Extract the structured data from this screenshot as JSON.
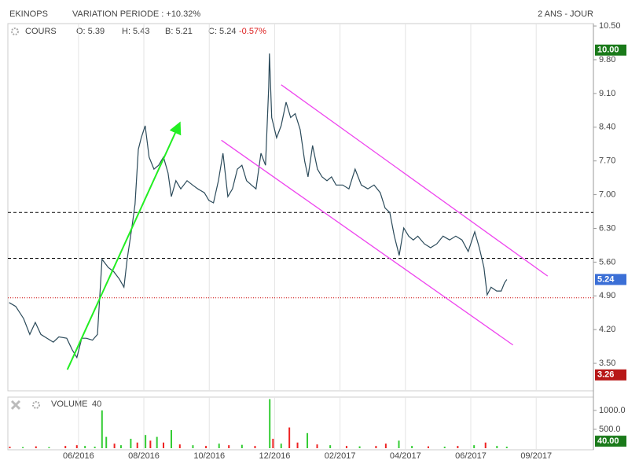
{
  "header": {
    "name": "EKINOPS",
    "variation": "VARIATION PERIODE : +10.32%",
    "period": "2 ANS - JOUR"
  },
  "chart_data": [
    {
      "type": "line",
      "legend": {
        "open": "O: 5.39",
        "high": "H: 5.43",
        "low": "B: 5.21",
        "close": "C: 5.24",
        "change": "-0.57%"
      },
      "xlim": [
        3.84,
        21.75
      ],
      "ylim": [
        2.93,
        10.55
      ],
      "xticks": [
        {
          "value": 6,
          "label": "06/2016"
        },
        {
          "value": 8,
          "label": "08/2016"
        },
        {
          "value": 10,
          "label": "10/2016"
        },
        {
          "value": 12,
          "label": "12/2016"
        },
        {
          "value": 14,
          "label": "02/2017"
        },
        {
          "value": 16,
          "label": "04/2017"
        },
        {
          "value": 18,
          "label": "06/2017"
        },
        {
          "value": 20,
          "label": "09/2017"
        }
      ],
      "yticks": [
        {
          "value": 3.5,
          "label": "3.50"
        },
        {
          "value": 4.2,
          "label": "4.20"
        },
        {
          "value": 4.9,
          "label": "4.90"
        },
        {
          "value": 5.6,
          "label": "5.60"
        },
        {
          "value": 6.3,
          "label": "6.30"
        },
        {
          "value": 7,
          "label": "7.00"
        },
        {
          "value": 7.7,
          "label": "7.70"
        },
        {
          "value": 8.4,
          "label": "8.40"
        },
        {
          "value": 9.1,
          "label": "9.10"
        },
        {
          "value": 9.8,
          "label": "9.80"
        },
        {
          "value": 10.5,
          "label": "10.50"
        }
      ],
      "grid": true,
      "series": [
        {
          "name": "COURS",
          "color": "#2b4a5a",
          "x": [
            3.88,
            4.08,
            4.32,
            4.51,
            4.68,
            4.85,
            5.04,
            5.23,
            5.4,
            5.64,
            5.81,
            5.95,
            6.1,
            6.24,
            6.43,
            6.58,
            6.72,
            6.91,
            7.08,
            7.25,
            7.39,
            7.49,
            7.63,
            7.73,
            7.83,
            7.92,
            8.04,
            8.16,
            8.31,
            8.45,
            8.6,
            8.74,
            8.84,
            8.98,
            9.13,
            9.32,
            9.49,
            9.65,
            9.85,
            9.99,
            10.13,
            10.28,
            10.42,
            10.57,
            10.71,
            10.86,
            11.0,
            11.14,
            11.29,
            11.43,
            11.58,
            11.72,
            11.82,
            11.84,
            11.91,
            12.06,
            12.2,
            12.35,
            12.49,
            12.63,
            12.78,
            12.92,
            13.02,
            13.16,
            13.31,
            13.45,
            13.6,
            13.74,
            13.88,
            14.08,
            14.27,
            14.46,
            14.65,
            14.85,
            15.04,
            15.23,
            15.38,
            15.52,
            15.66,
            15.81,
            15.95,
            16.1,
            16.24,
            16.38,
            16.58,
            16.77,
            16.96,
            17.15,
            17.35,
            17.54,
            17.73,
            17.92,
            18.12,
            18.26,
            18.4,
            18.5,
            18.62,
            18.79,
            18.93,
            19.03,
            19.1
          ],
          "values": [
            4.76,
            4.68,
            4.43,
            4.1,
            4.35,
            4.1,
            4.02,
            3.94,
            4.05,
            4.02,
            3.78,
            3.62,
            4.02,
            4.02,
            3.98,
            4.1,
            5.66,
            5.49,
            5.4,
            5.25,
            5.08,
            5.66,
            6.31,
            6.8,
            7.94,
            8.18,
            8.43,
            7.78,
            7.53,
            7.61,
            7.78,
            7.45,
            6.96,
            7.29,
            7.12,
            7.29,
            7.2,
            7.12,
            7.04,
            6.88,
            6.83,
            7.29,
            7.86,
            6.96,
            7.12,
            7.53,
            7.61,
            7.29,
            7.2,
            7.12,
            7.86,
            7.61,
            9.24,
            9.93,
            8.6,
            8.18,
            8.43,
            8.92,
            8.6,
            8.68,
            8.35,
            7.69,
            7.37,
            8.02,
            7.53,
            7.37,
            7.29,
            7.37,
            7.2,
            7.2,
            7.12,
            7.53,
            7.2,
            7.12,
            7.2,
            7.04,
            6.72,
            6.63,
            6.14,
            5.74,
            6.31,
            6.14,
            6.06,
            6.14,
            5.98,
            5.9,
            5.98,
            6.14,
            6.06,
            6.14,
            6.06,
            5.82,
            6.23,
            5.9,
            5.49,
            4.92,
            5.08,
            5.0,
            5.0,
            5.17,
            5.24
          ]
        }
      ],
      "hlines": [
        {
          "value": 6.63,
          "color": "#000000",
          "style": "dashed"
        },
        {
          "value": 5.68,
          "color": "#000000",
          "style": "dashed"
        },
        {
          "value": 4.86,
          "color": "#cc0000",
          "style": "dotted"
        }
      ],
      "trendlines": [
        {
          "color": "#22ee22",
          "arrow": true,
          "x": [
            5.66,
            9.08
          ],
          "values": [
            3.37,
            8.46
          ]
        },
        {
          "color": "#ee44ee",
          "arrow": false,
          "x": [
            12.2,
            20.35
          ],
          "values": [
            9.28,
            5.31
          ]
        },
        {
          "color": "#ee44ee",
          "arrow": false,
          "x": [
            10.37,
            19.29
          ],
          "values": [
            8.13,
            3.88
          ]
        }
      ],
      "markers": [
        {
          "value": 10,
          "label": "10.00",
          "color": "#1a7a1a"
        },
        {
          "value": 5.24,
          "label": "5.24",
          "color": "#3b6fd6"
        },
        {
          "value": 3.26,
          "label": "3.26",
          "color": "#b81818"
        }
      ]
    },
    {
      "type": "bar",
      "legend_value": "40",
      "ylim": [
        0,
        1333
      ],
      "yticks": [
        {
          "value": 1000,
          "label": "1000.0"
        },
        {
          "value": 500,
          "label": "500.0"
        }
      ],
      "series": [
        {
          "name": "VOLUME",
          "x": [
            3.9,
            4.3,
            4.7,
            5.1,
            5.6,
            5.95,
            6.2,
            6.5,
            6.72,
            6.85,
            7.1,
            7.3,
            7.6,
            7.8,
            8.05,
            8.2,
            8.4,
            8.6,
            8.84,
            9.1,
            9.5,
            9.9,
            10.3,
            10.6,
            11.0,
            11.4,
            11.85,
            11.95,
            12.2,
            12.45,
            12.7,
            13.0,
            13.3,
            13.7,
            14.2,
            14.6,
            15.1,
            15.4,
            15.8,
            16.2,
            16.7,
            17.2,
            17.6,
            18.1,
            18.45,
            18.8,
            19.1
          ],
          "values": [
            40,
            30,
            50,
            30,
            60,
            80,
            60,
            40,
            1000,
            300,
            120,
            80,
            250,
            150,
            350,
            200,
            300,
            150,
            480,
            100,
            80,
            60,
            120,
            80,
            90,
            60,
            1300,
            250,
            120,
            550,
            150,
            400,
            100,
            80,
            60,
            50,
            60,
            120,
            200,
            60,
            50,
            40,
            60,
            80,
            150,
            60,
            40
          ],
          "colors": [
            "#ee2222",
            "#33cc33",
            "#ee2222",
            "#33cc33",
            "#ee2222",
            "#ee2222",
            "#33cc33",
            "#33cc33",
            "#33cc33",
            "#33cc33",
            "#ee2222",
            "#33cc33",
            "#33cc33",
            "#ee2222",
            "#33cc33",
            "#ee2222",
            "#33cc33",
            "#ee2222",
            "#33cc33",
            "#ee2222",
            "#33cc33",
            "#ee2222",
            "#33cc33",
            "#ee2222",
            "#33cc33",
            "#ee2222",
            "#33cc33",
            "#ee2222",
            "#33cc33",
            "#ee2222",
            "#ee2222",
            "#33cc33",
            "#ee2222",
            "#33cc33",
            "#ee2222",
            "#33cc33",
            "#ee2222",
            "#ee2222",
            "#33cc33",
            "#33cc33",
            "#ee2222",
            "#33cc33",
            "#ee2222",
            "#33cc33",
            "#ee2222",
            "#33cc33",
            "#33cc33"
          ]
        }
      ],
      "current": {
        "value": 40,
        "label": "40.00",
        "color": "#1a7a1a"
      }
    }
  ]
}
